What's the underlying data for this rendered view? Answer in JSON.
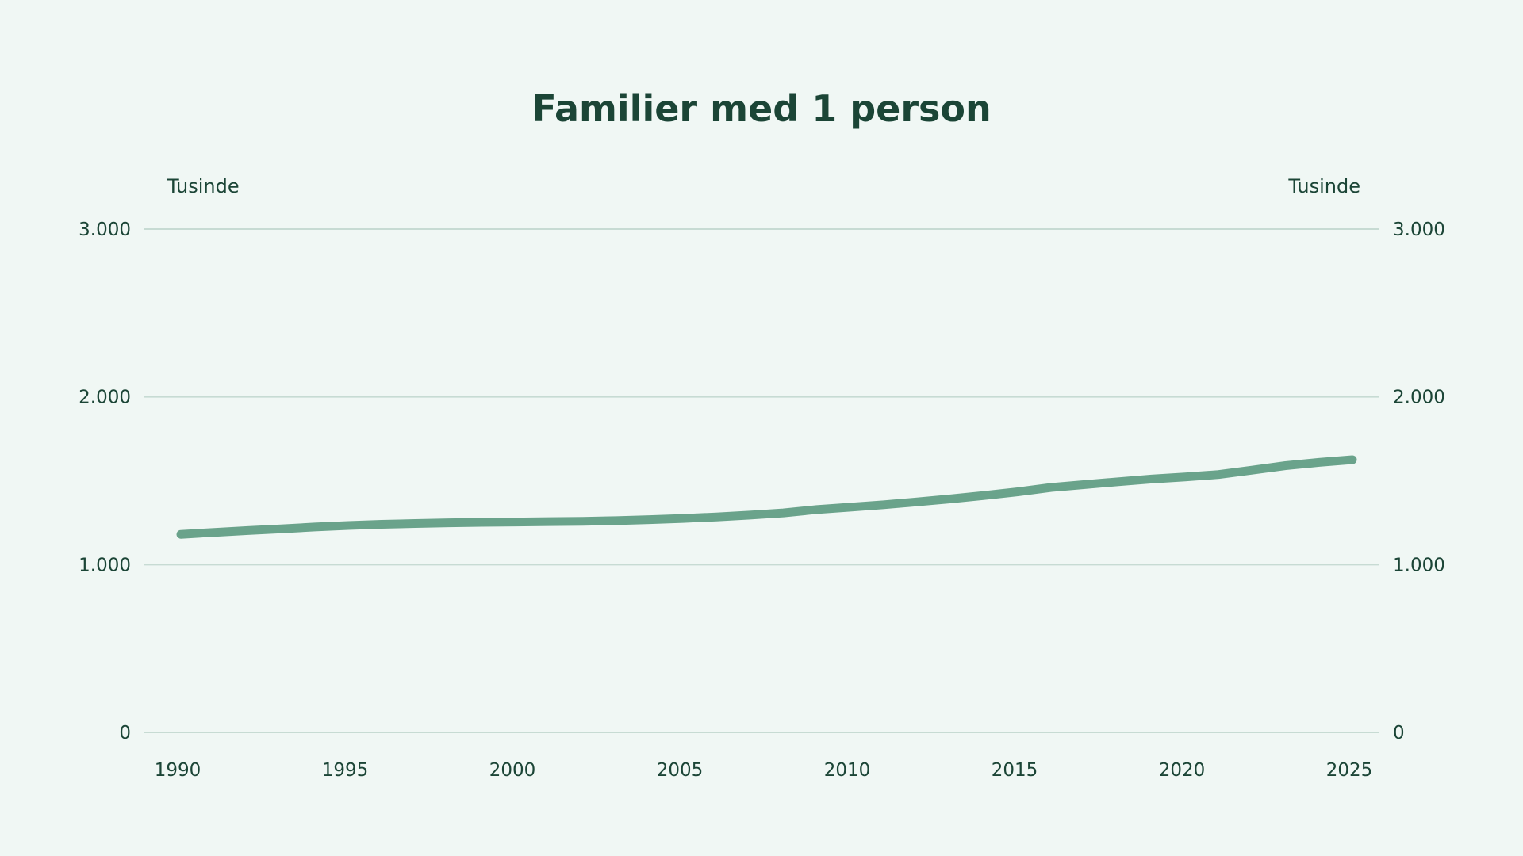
{
  "chart_data": {
    "type": "line",
    "title": "Familier med 1 person",
    "ylabel_left": "Tusinde",
    "ylabel_right": "Tusinde",
    "xlabel": "",
    "ylim": [
      0,
      3000
    ],
    "y_ticks": [
      0,
      1000,
      2000,
      3000
    ],
    "y_tick_labels": [
      "0",
      "1.000",
      "2.000",
      "3.000"
    ],
    "x_ticks": [
      1990,
      1995,
      2000,
      2005,
      2010,
      2015,
      2020,
      2025
    ],
    "x_tick_labels": [
      "1990",
      "1995",
      "2000",
      "2005",
      "2010",
      "2015",
      "2020",
      "2025"
    ],
    "xlim": [
      1990,
      2025
    ],
    "grid": true,
    "legend": "none",
    "series_color": "#6aa38b",
    "series": [
      {
        "x": [
          1990,
          1991,
          1992,
          1993,
          1994,
          1995,
          1996,
          1997,
          1998,
          1999,
          2000,
          2001,
          2002,
          2003,
          2004,
          2005,
          2006,
          2007,
          2008,
          2009,
          2010,
          2011,
          2012,
          2013,
          2014,
          2015,
          2016,
          2017,
          2018,
          2019,
          2020,
          2021,
          2022,
          2023,
          2024,
          2025
        ],
        "values": [
          1180,
          1192,
          1203,
          1213,
          1224,
          1233,
          1240,
          1245,
          1249,
          1252,
          1254,
          1256,
          1258,
          1262,
          1268,
          1275,
          1284,
          1295,
          1308,
          1328,
          1342,
          1357,
          1374,
          1392,
          1412,
          1434,
          1460,
          1477,
          1494,
          1510,
          1522,
          1537,
          1563,
          1590,
          1609,
          1625
        ]
      }
    ]
  }
}
